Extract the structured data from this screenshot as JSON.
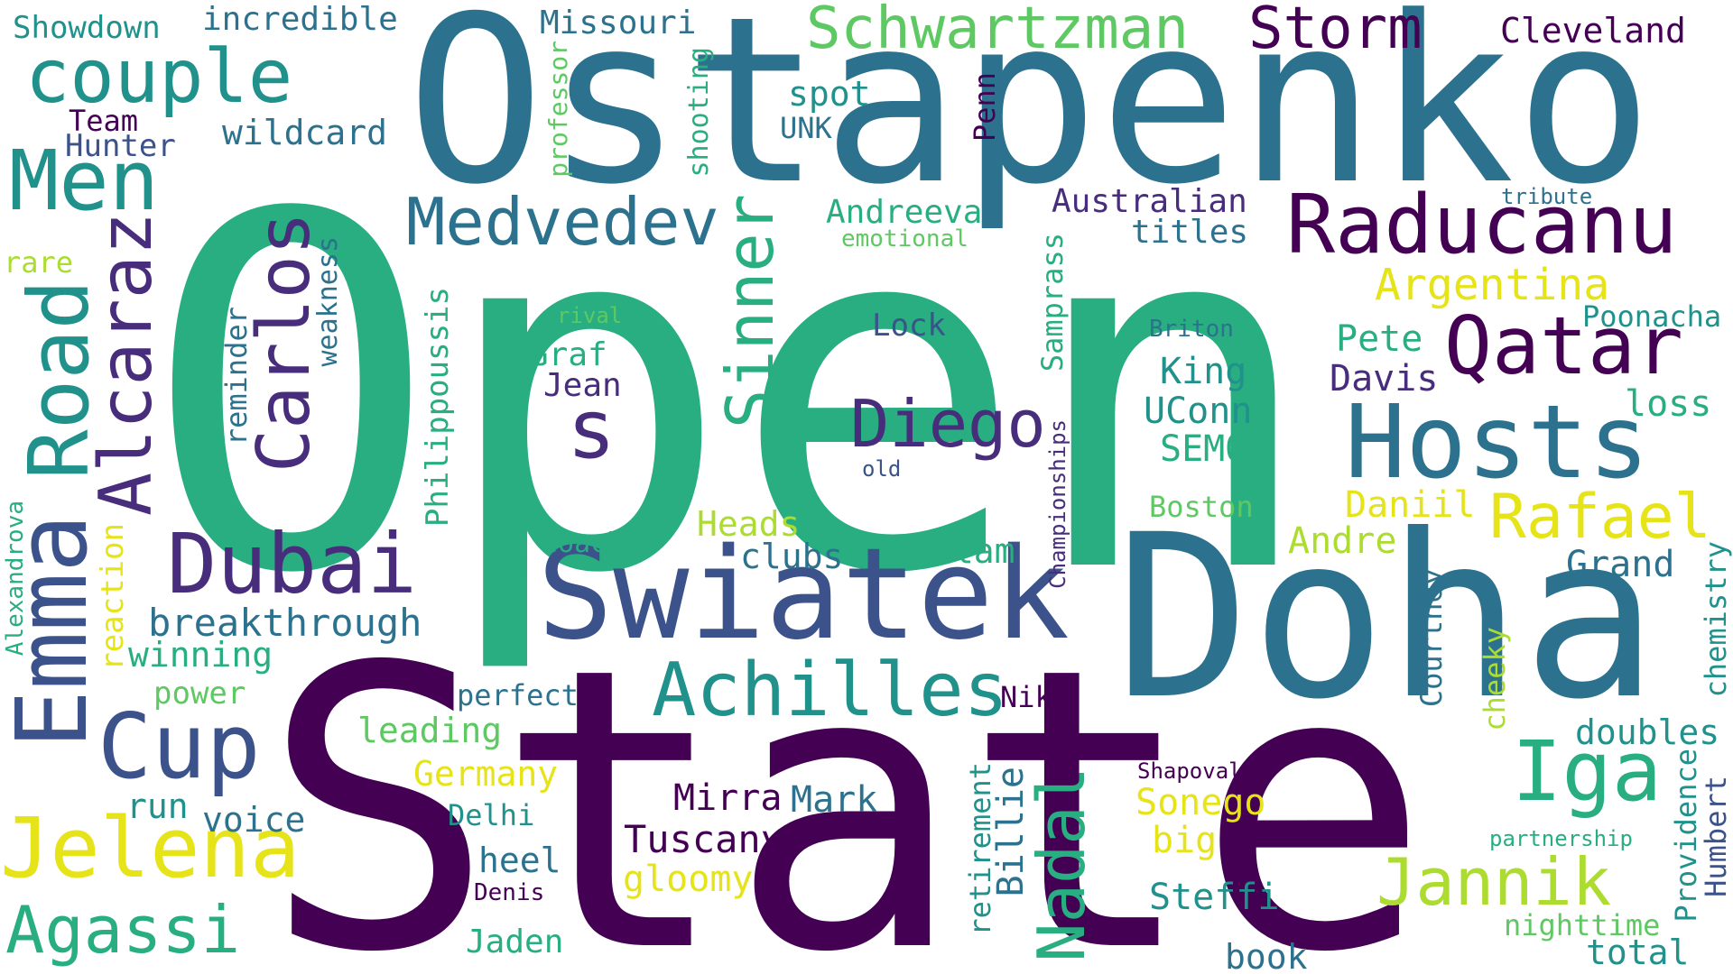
{
  "palette": {
    "purple": "#440154",
    "indigo": "#472d7b",
    "blue": "#3b528b",
    "steel": "#2c728e",
    "teal": "#21918c",
    "green": "#28ae80",
    "leaf": "#5ec962",
    "lime": "#addc30",
    "yellow": "#e6e419"
  },
  "words": {
    "state": "State",
    "open": "Open",
    "ostapenko": "Ostapenko",
    "doha": "Doha",
    "swiatek": "Swiatek",
    "hosts": "Hosts",
    "raducanu": "Raducanu",
    "qatar": "Qatar",
    "couple": "couple",
    "men": "Men",
    "emma": "Emma",
    "road": "Road",
    "alcaraz": "Alcaraz",
    "carlos": "Carlos",
    "dubai": "Dubai",
    "cup": "Cup",
    "jelena": "Jelena",
    "agassi": "Agassi",
    "achilles": "Achilles",
    "medvedev": "Medvedev",
    "sinner": "Sinner",
    "s": "s",
    "diego": "Diego",
    "iga": "Iga",
    "jannik": "Jannik",
    "nadal": "Nadal",
    "rafael": "Rafael",
    "schwartzman": "Schwartzman",
    "storm": "Storm",
    "showdown": "Showdown",
    "incredible": "incredible",
    "missouri": "Missouri",
    "cleveland": "Cleveland",
    "team": "Team",
    "hunter": "Hunter",
    "wildcard": "wildcard",
    "professor": "professor",
    "shooting": "shooting",
    "spot": "spot",
    "unk": "UNK",
    "penn": "Penn",
    "andreeva": "Andreeva",
    "emotional": "emotional",
    "australian": "Australian",
    "titles": "titles",
    "tribute": "tribute",
    "rare": "rare",
    "weakness": "weakness",
    "reminder": "reminder",
    "argentina": "Argentina",
    "poonacha": "Poonacha",
    "rival": "rival",
    "lock": "Lock",
    "briton": "Briton",
    "pete": "Pete",
    "graf": "Graf",
    "jean": "Jean",
    "king": "King",
    "davis": "Davis",
    "philippoussis": "Philippoussis",
    "samprass": "Samprass",
    "uconn": "UConn",
    "loss": "loss",
    "semo": "SEMO",
    "old": "old",
    "championships": "Championships",
    "boston": "Boston",
    "daniil": "Daniil",
    "heads": "Heads",
    "coach": "coach",
    "clubs": "clubs",
    "slam": "Slam",
    "andre": "Andre",
    "grand": "Grand",
    "chemistry": "chemistry",
    "alexandrova": "Alexandrova",
    "reaction": "reaction",
    "breakthrough": "breakthrough",
    "winning": "winning",
    "power": "power",
    "perfect": "perfect",
    "niki": "Niki",
    "courtney": "Courtney",
    "cheeky": "cheeky",
    "doubles": "doubles",
    "leading": "leading",
    "germany": "Germany",
    "shapovalov": "Shapovalov",
    "providence": "Providence",
    "humbert": "Humbert",
    "run": "run",
    "voice": "voice",
    "delhi": "Delhi",
    "mirra": "Mirra",
    "mark": "Mark",
    "sonego": "Sonego",
    "partnership": "partnership",
    "retirement": "retirement",
    "billie": "Billie",
    "heel": "heel",
    "tuscany": "Tuscany",
    "big": "big",
    "gloomy": "gloomy",
    "denis": "Denis",
    "steffi": "Steffi",
    "nighttime": "nighttime",
    "jaden": "Jaden",
    "total": "total",
    "book": "book"
  }
}
